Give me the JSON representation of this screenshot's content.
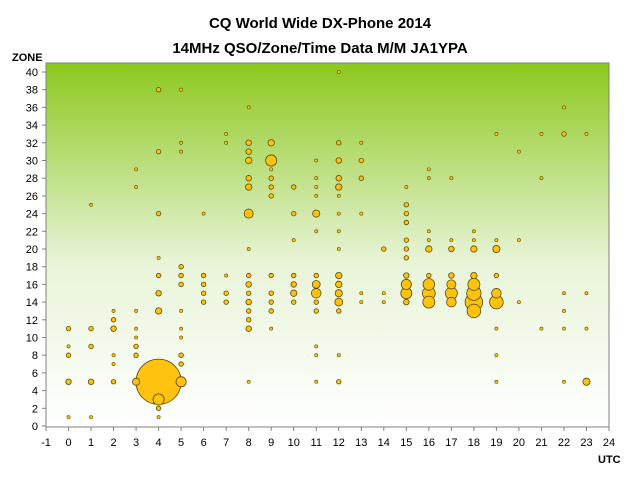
{
  "chart_data": {
    "type": "scatter",
    "title": "CQ World Wide DX-Phone 2014",
    "subtitle": "14MHz QSO/Zone/Time Data M/M JA1YPA",
    "xlabel": "UTC",
    "ylabel": "ZONE",
    "xlim": [
      -1,
      24
    ],
    "ylim": [
      0,
      40
    ],
    "xticks": [
      -1,
      0,
      1,
      2,
      3,
      4,
      5,
      6,
      7,
      8,
      9,
      10,
      11,
      12,
      13,
      14,
      15,
      16,
      17,
      18,
      19,
      20,
      21,
      22,
      23,
      24
    ],
    "yticks": [
      0,
      2,
      4,
      6,
      8,
      10,
      12,
      14,
      16,
      18,
      20,
      22,
      24,
      26,
      28,
      30,
      32,
      34,
      36,
      38,
      40
    ],
    "grid": false,
    "legend": "none",
    "colors": {
      "marker_fill": "#ffc20e",
      "marker_edge": "#5a4a00",
      "plot_top": "#8cc81e",
      "plot_bottom": "#ffffff"
    },
    "size_note": "marker area proportional to QSO count",
    "points": [
      [
        0,
        1,
        1
      ],
      [
        0,
        5,
        3
      ],
      [
        0,
        8,
        2
      ],
      [
        0,
        9,
        1
      ],
      [
        0,
        11,
        2
      ],
      [
        1,
        1,
        1
      ],
      [
        1,
        5,
        3
      ],
      [
        1,
        9,
        2
      ],
      [
        1,
        11,
        2
      ],
      [
        1,
        25,
        1
      ],
      [
        2,
        5,
        2
      ],
      [
        2,
        7,
        1
      ],
      [
        2,
        8,
        1
      ],
      [
        2,
        11,
        3
      ],
      [
        2,
        12,
        2
      ],
      [
        2,
        13,
        1
      ],
      [
        3,
        5,
        5
      ],
      [
        3,
        8,
        2
      ],
      [
        3,
        9,
        2
      ],
      [
        3,
        10,
        1
      ],
      [
        3,
        11,
        1
      ],
      [
        3,
        13,
        1
      ],
      [
        3,
        27,
        1
      ],
      [
        3,
        29,
        1
      ],
      [
        4,
        1,
        1
      ],
      [
        4,
        2,
        2
      ],
      [
        4,
        3,
        12
      ],
      [
        4,
        5,
        200
      ],
      [
        4,
        13,
        4
      ],
      [
        4,
        15,
        3
      ],
      [
        4,
        17,
        2
      ],
      [
        4,
        19,
        1
      ],
      [
        4,
        24,
        2
      ],
      [
        4,
        31,
        2
      ],
      [
        4,
        38,
        2
      ],
      [
        5,
        5,
        10
      ],
      [
        5,
        7,
        2
      ],
      [
        5,
        8,
        2
      ],
      [
        5,
        10,
        1
      ],
      [
        5,
        11,
        1
      ],
      [
        5,
        13,
        1
      ],
      [
        5,
        16,
        2
      ],
      [
        5,
        17,
        2
      ],
      [
        5,
        18,
        2
      ],
      [
        5,
        31,
        1
      ],
      [
        5,
        32,
        1
      ],
      [
        5,
        38,
        1
      ],
      [
        6,
        14,
        2
      ],
      [
        6,
        15,
        2
      ],
      [
        6,
        16,
        2
      ],
      [
        6,
        17,
        2
      ],
      [
        6,
        24,
        1
      ],
      [
        7,
        14,
        2
      ],
      [
        7,
        15,
        2
      ],
      [
        7,
        17,
        1
      ],
      [
        7,
        32,
        1
      ],
      [
        7,
        33,
        1
      ],
      [
        8,
        5,
        1
      ],
      [
        8,
        11,
        3
      ],
      [
        8,
        12,
        2
      ],
      [
        8,
        13,
        2
      ],
      [
        8,
        14,
        3
      ],
      [
        8,
        15,
        2
      ],
      [
        8,
        16,
        3
      ],
      [
        8,
        17,
        2
      ],
      [
        8,
        20,
        1
      ],
      [
        8,
        24,
        8
      ],
      [
        8,
        27,
        4
      ],
      [
        8,
        28,
        3
      ],
      [
        8,
        30,
        4
      ],
      [
        8,
        31,
        3
      ],
      [
        8,
        32,
        3
      ],
      [
        8,
        36,
        1
      ],
      [
        9,
        11,
        1
      ],
      [
        9,
        13,
        2
      ],
      [
        9,
        14,
        2
      ],
      [
        9,
        15,
        2
      ],
      [
        9,
        17,
        2
      ],
      [
        9,
        26,
        2
      ],
      [
        9,
        27,
        2
      ],
      [
        9,
        28,
        2
      ],
      [
        9,
        29,
        1
      ],
      [
        9,
        30,
        12
      ],
      [
        9,
        32,
        4
      ],
      [
        10,
        14,
        2
      ],
      [
        10,
        15,
        4
      ],
      [
        10,
        16,
        3
      ],
      [
        10,
        17,
        2
      ],
      [
        10,
        21,
        1
      ],
      [
        10,
        24,
        2
      ],
      [
        10,
        27,
        2
      ],
      [
        11,
        5,
        1
      ],
      [
        11,
        8,
        1
      ],
      [
        11,
        9,
        1
      ],
      [
        11,
        13,
        2
      ],
      [
        11,
        14,
        2
      ],
      [
        11,
        15,
        9
      ],
      [
        11,
        16,
        6
      ],
      [
        11,
        17,
        2
      ],
      [
        11,
        22,
        1
      ],
      [
        11,
        24,
        5
      ],
      [
        11,
        26,
        1
      ],
      [
        11,
        27,
        1
      ],
      [
        11,
        28,
        1
      ],
      [
        11,
        30,
        1
      ],
      [
        12,
        5,
        2
      ],
      [
        12,
        8,
        1
      ],
      [
        12,
        13,
        2
      ],
      [
        12,
        14,
        6
      ],
      [
        12,
        15,
        5
      ],
      [
        12,
        16,
        4
      ],
      [
        12,
        17,
        4
      ],
      [
        12,
        20,
        1
      ],
      [
        12,
        22,
        1
      ],
      [
        12,
        24,
        1
      ],
      [
        12,
        26,
        1
      ],
      [
        12,
        27,
        4
      ],
      [
        12,
        28,
        3
      ],
      [
        12,
        30,
        3
      ],
      [
        12,
        32,
        2
      ],
      [
        12,
        40,
        1
      ],
      [
        13,
        14,
        1
      ],
      [
        13,
        15,
        1
      ],
      [
        13,
        24,
        1
      ],
      [
        13,
        28,
        2
      ],
      [
        13,
        30,
        2
      ],
      [
        13,
        32,
        1
      ],
      [
        14,
        14,
        1
      ],
      [
        14,
        15,
        1
      ],
      [
        14,
        20,
        2
      ],
      [
        15,
        14,
        3
      ],
      [
        15,
        15,
        12
      ],
      [
        15,
        16,
        10
      ],
      [
        15,
        17,
        3
      ],
      [
        15,
        19,
        2
      ],
      [
        15,
        20,
        2
      ],
      [
        15,
        21,
        2
      ],
      [
        15,
        23,
        2
      ],
      [
        15,
        24,
        2
      ],
      [
        15,
        25,
        2
      ],
      [
        15,
        27,
        1
      ],
      [
        16,
        14,
        14
      ],
      [
        16,
        15,
        16
      ],
      [
        16,
        16,
        13
      ],
      [
        16,
        17,
        2
      ],
      [
        16,
        20,
        4
      ],
      [
        16,
        21,
        1
      ],
      [
        16,
        22,
        1
      ],
      [
        16,
        28,
        1
      ],
      [
        16,
        29,
        1
      ],
      [
        17,
        14,
        9
      ],
      [
        17,
        15,
        14
      ],
      [
        17,
        16,
        8
      ],
      [
        17,
        17,
        3
      ],
      [
        17,
        20,
        3
      ],
      [
        17,
        21,
        1
      ],
      [
        17,
        28,
        1
      ],
      [
        18,
        13,
        18
      ],
      [
        18,
        14,
        30
      ],
      [
        18,
        15,
        20
      ],
      [
        18,
        16,
        14
      ],
      [
        18,
        17,
        4
      ],
      [
        18,
        20,
        4
      ],
      [
        18,
        21,
        1
      ],
      [
        18,
        22,
        1
      ],
      [
        19,
        5,
        1
      ],
      [
        19,
        8,
        1
      ],
      [
        19,
        11,
        1
      ],
      [
        19,
        14,
        18
      ],
      [
        19,
        15,
        9
      ],
      [
        19,
        17,
        2
      ],
      [
        19,
        20,
        5
      ],
      [
        19,
        21,
        1
      ],
      [
        19,
        33,
        1
      ],
      [
        20,
        14,
        1
      ],
      [
        20,
        21,
        1
      ],
      [
        20,
        31,
        1
      ],
      [
        21,
        11,
        1
      ],
      [
        21,
        28,
        1
      ],
      [
        21,
        33,
        1
      ],
      [
        22,
        5,
        1
      ],
      [
        22,
        11,
        1
      ],
      [
        22,
        13,
        1
      ],
      [
        22,
        15,
        1
      ],
      [
        22,
        33,
        2
      ],
      [
        22,
        36,
        1
      ],
      [
        23,
        5,
        5
      ],
      [
        23,
        11,
        1
      ],
      [
        23,
        15,
        1
      ],
      [
        23,
        33,
        1
      ]
    ]
  }
}
